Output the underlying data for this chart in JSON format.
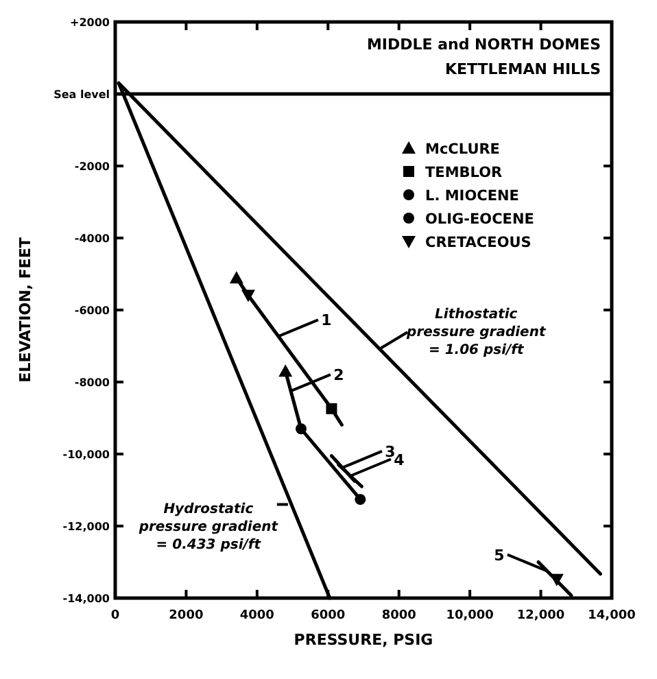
{
  "chart_data": {
    "type": "scatter",
    "title": "MIDDLE and NORTH DOMES",
    "subtitle": "KETTLEMAN HILLS",
    "xlabel": "PRESSURE, PSIG",
    "ylabel": "ELEVATION, FEET",
    "xlim": [
      0,
      14000
    ],
    "ylim": [
      -14000,
      2000
    ],
    "xticks": [
      0,
      2000,
      4000,
      6000,
      8000,
      {
        "value": 10000,
        "label": "10,000"
      },
      {
        "value": 12000,
        "label": "12,000"
      },
      {
        "value": 14000,
        "label": "14,000"
      }
    ],
    "yticks": [
      {
        "value": 2000,
        "label": "+2000"
      },
      {
        "value": 0,
        "label": "Sea level"
      },
      -2000,
      -4000,
      -6000,
      -8000,
      {
        "value": -10000,
        "label": "-10,000"
      },
      {
        "value": -12000,
        "label": "-12,000"
      },
      {
        "value": -14000,
        "label": "-14,000"
      }
    ],
    "ref_lines": [
      {
        "axis": "y",
        "value": 0,
        "color": "#000000"
      }
    ],
    "legend": "top right",
    "series": [
      {
        "type": "line",
        "color": "#000000",
        "marker": "none",
        "x": [
          100,
          13680
        ],
        "values": [
          300,
          -13330
        ]
      },
      {
        "type": "line",
        "color": "#000000",
        "marker": "none",
        "x": [
          100,
          6050
        ],
        "values": [
          300,
          -14000
        ]
      },
      {
        "type": "line",
        "color": "#000000",
        "marker": "none",
        "x": [
          3420,
          3750,
          6100,
          6390
        ],
        "values": [
          -5110,
          -5590,
          -8740,
          -9190
        ]
      },
      {
        "type": "line",
        "color": "#000000",
        "marker": "none",
        "x": [
          4800,
          5240,
          6910
        ],
        "values": [
          -7700,
          -9300,
          -11260
        ]
      },
      {
        "type": "line",
        "color": "#000000",
        "marker": "none",
        "x": [
          6100,
          6750
        ],
        "values": [
          -10050,
          -10750
        ]
      },
      {
        "type": "line",
        "color": "#000000",
        "marker": "none",
        "x": [
          6300,
          6950
        ],
        "values": [
          -10300,
          -10900
        ]
      },
      {
        "type": "line",
        "color": "#000000",
        "marker": "none",
        "x": [
          11930,
          12860
        ],
        "values": [
          -13000,
          -13930
        ]
      },
      {
        "name": "McCLURE",
        "color": "#000000",
        "marker": "triangle",
        "x": [
          3420,
          4800
        ],
        "values": [
          -5110,
          -7700
        ]
      },
      {
        "name": "TEMBLOR",
        "color": "#000000",
        "marker": "square",
        "x": [
          6100
        ],
        "values": [
          -8740
        ]
      },
      {
        "name": "L. MIOCENE",
        "color": "#000000",
        "marker": "circle",
        "x": [
          5240
        ],
        "values": [
          -9300
        ]
      },
      {
        "name": "OLIG-EOCENE",
        "color": "#000000",
        "marker": "circle",
        "x": [
          6910
        ],
        "values": [
          -11260
        ]
      },
      {
        "name": "CRETACEOUS",
        "color": "#000000",
        "marker": "triangle-down",
        "x": [
          3750,
          12450
        ],
        "values": [
          -5590,
          -13480
        ]
      }
    ],
    "annotations": [
      {
        "text": "1",
        "x": 4600,
        "y": -6730
      },
      {
        "text": "2",
        "x": 4950,
        "y": -8250
      },
      {
        "text": "3",
        "x": 6400,
        "y": -10380
      },
      {
        "text": "4",
        "x": 6650,
        "y": -10600
      },
      {
        "text": "5",
        "x": 12180,
        "y": -13250
      },
      {
        "text": "Lithostatic\npressure gradient\n= 1.06 psi/ft",
        "x": 7470,
        "y": -7070
      },
      {
        "text": "Hydrostatic\npressure gradient\n= 0.433 psi/ft",
        "x": 4870,
        "y": -11400
      }
    ]
  }
}
